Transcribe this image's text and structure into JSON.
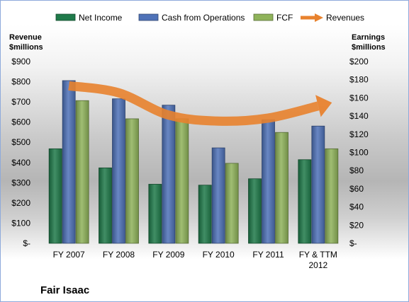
{
  "chart_data": {
    "type": "bar",
    "company": "Fair Isaac",
    "categories": [
      [
        "FY 2007"
      ],
      [
        "FY 2008"
      ],
      [
        "FY 2009"
      ],
      [
        "FY 2010"
      ],
      [
        "FY 2011"
      ],
      [
        "FY & TTM",
        "2012"
      ]
    ],
    "left_axis": {
      "title": [
        "Revenue",
        "$millions"
      ],
      "ylim": [
        0,
        900
      ],
      "ticks": [
        "$-",
        "$100",
        "$200",
        "$300",
        "$400",
        "$500",
        "$600",
        "$700",
        "$800",
        "$900"
      ]
    },
    "right_axis": {
      "title": [
        "Earnings",
        "$millions"
      ],
      "ylim": [
        0,
        200
      ],
      "ticks": [
        "$-",
        "$20",
        "$40",
        "$60",
        "$80",
        "$100",
        "$120",
        "$140",
        "$160",
        "$180",
        "$200"
      ]
    },
    "series": [
      {
        "name": "Net Income",
        "axis": "right",
        "color": "#1f7a4a",
        "values": [
          104,
          83,
          65,
          64,
          71,
          92
        ]
      },
      {
        "name": "Cash from Operations",
        "axis": "right",
        "color": "#4f72b8",
        "values": [
          179,
          159,
          152,
          105,
          136,
          129
        ]
      },
      {
        "name": "FCF",
        "axis": "right",
        "color": "#8fb35a",
        "values": [
          157,
          137,
          137,
          88,
          122,
          104
        ]
      }
    ],
    "trend": {
      "name": "Revenues",
      "type": "arrow",
      "color": "#e8822e",
      "values": [
        780,
        745,
        635,
        605,
        620,
        680
      ]
    },
    "grid": false,
    "legend_position": "top"
  }
}
